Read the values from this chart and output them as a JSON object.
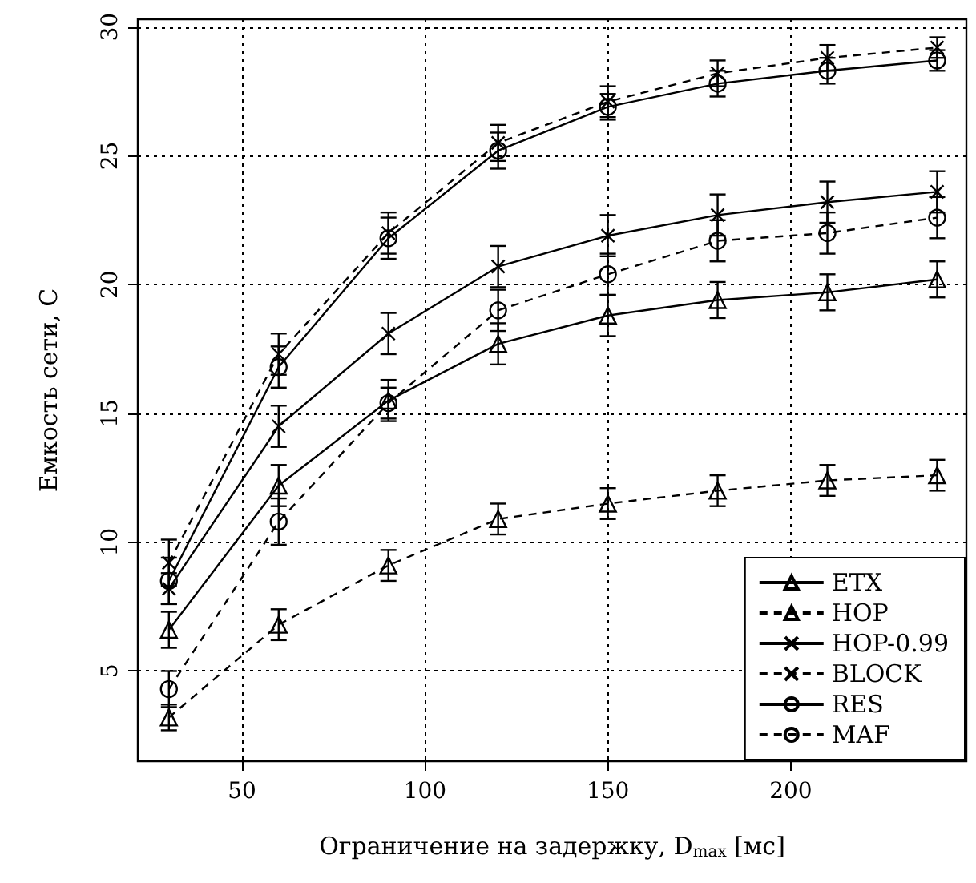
{
  "chart_data": {
    "type": "line",
    "xlabel": "Ограничение на задержку, D$_{max}$ [мс]",
    "ylabel": "Емкость сети, C",
    "x": [
      30,
      60,
      90,
      120,
      150,
      180,
      210,
      240
    ],
    "xlim": [
      21.5,
      248
    ],
    "xticks": [
      50,
      100,
      150,
      200
    ],
    "ylim": [
      1.5,
      30.3
    ],
    "yticks": [
      5,
      10,
      15,
      20,
      25,
      30
    ],
    "grid": true,
    "legend": "bottom right",
    "series": [
      {
        "name": "ETX",
        "color": "#000000",
        "marker": "triangle",
        "line_style": "solid",
        "values": [
          6.6,
          12.2,
          15.5,
          17.7,
          18.8,
          19.4,
          19.7,
          20.2
        ],
        "errors": [
          0.7,
          0.8,
          0.8,
          0.8,
          0.8,
          0.7,
          0.7,
          0.7
        ]
      },
      {
        "name": "HOP",
        "color": "#000000",
        "marker": "triangle",
        "line_style": "dashed",
        "values": [
          3.2,
          6.8,
          9.1,
          10.9,
          11.5,
          12.0,
          12.4,
          12.6
        ],
        "errors": [
          0.5,
          0.6,
          0.6,
          0.6,
          0.6,
          0.6,
          0.6,
          0.6
        ]
      },
      {
        "name": "HOP-0.99",
        "color": "#000000",
        "marker": "cross",
        "line_style": "solid",
        "values": [
          8.2,
          14.5,
          18.1,
          20.7,
          21.9,
          22.7,
          23.2,
          23.6
        ],
        "errors": [
          0.6,
          0.8,
          0.8,
          0.8,
          0.8,
          0.8,
          0.8,
          0.8
        ]
      },
      {
        "name": "BLOCK",
        "color": "#000000",
        "marker": "cross",
        "line_style": "dashed",
        "values": [
          9.2,
          17.3,
          22.0,
          25.5,
          27.1,
          28.2,
          28.8,
          29.2
        ],
        "errors": [
          0.9,
          0.8,
          0.8,
          0.7,
          0.6,
          0.5,
          0.5,
          0.4
        ]
      },
      {
        "name": "RES",
        "color": "#000000",
        "marker": "circle",
        "line_style": "solid",
        "values": [
          8.5,
          16.8,
          21.8,
          25.2,
          26.9,
          27.8,
          28.3,
          28.7
        ],
        "errors": [
          0.9,
          0.8,
          0.8,
          0.7,
          0.5,
          0.5,
          0.5,
          0.4
        ]
      },
      {
        "name": "MAF",
        "color": "#000000",
        "marker": "circle",
        "line_style": "dashed",
        "values": [
          4.3,
          10.8,
          15.4,
          19.0,
          20.4,
          21.7,
          22.0,
          22.6
        ],
        "errors": [
          0.7,
          0.9,
          0.6,
          0.8,
          0.8,
          0.8,
          0.8,
          0.8
        ]
      }
    ]
  }
}
